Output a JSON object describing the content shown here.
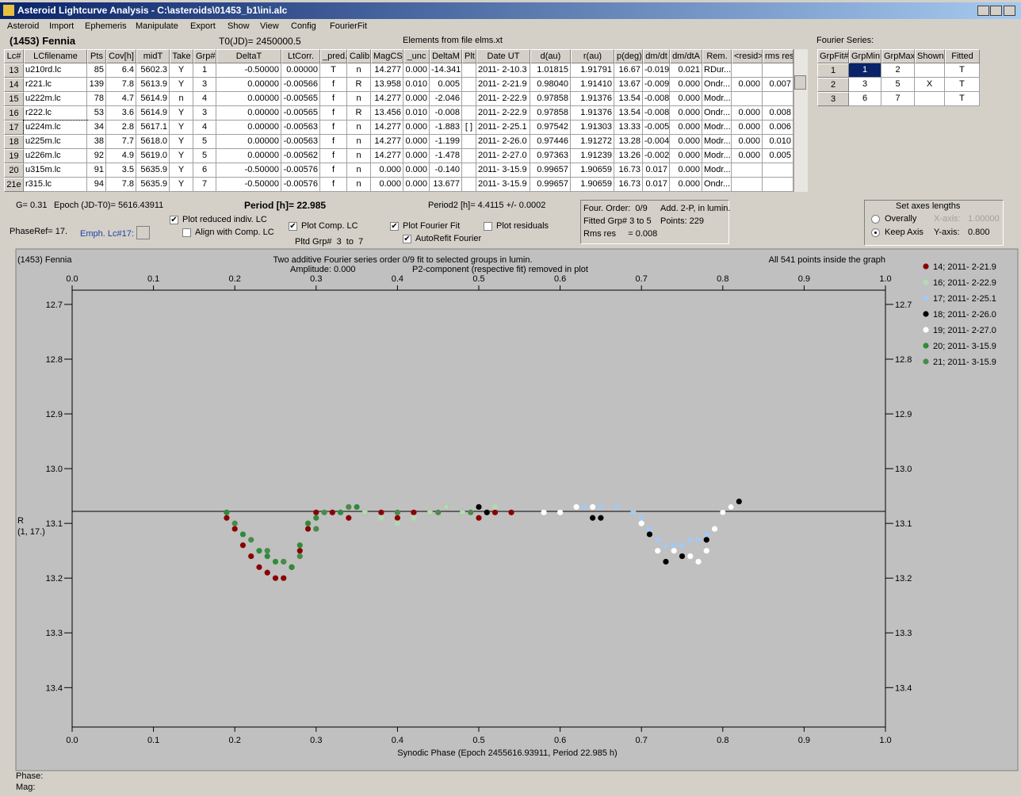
{
  "title_bar": "Asteroid Lightcurve Analysis - C:\\asteroids\\01453_b1\\ini.alc",
  "menu": [
    "Asteroid",
    "Import",
    "Ephemeris",
    "Manipulate",
    "Export",
    "Show",
    "View",
    "Config",
    "FourierFit"
  ],
  "header": {
    "object_name": "(1453) Fennia",
    "t0": "T0(JD)= 2450000.5",
    "elements": "Elements from file elms.xt"
  },
  "table": {
    "headers": [
      "Lc#",
      "LCfilename",
      "Pts",
      "Cov[h]",
      "midT",
      "Take",
      "Grp#",
      "DeltaT",
      "LtCorr.",
      "_pred.",
      "Calib.",
      "MagCS",
      "_unc",
      "DeltaM",
      "Plt",
      "Date UT",
      "d(au)",
      "r(au)",
      "p(deg)",
      "dm/dt",
      "dm/dtA",
      "Rem.",
      "<resid>",
      "rms res"
    ],
    "rows": [
      [
        "13",
        "u210rd.lc",
        "85",
        "6.4",
        "5602.3",
        "Y",
        "1",
        "-0.50000",
        "0.00000",
        "T",
        "n",
        "14.277",
        "0.000",
        "-14.341",
        null,
        "2011- 2-10.3",
        "1.01815",
        "1.91791",
        "16.67",
        "-0.019",
        "0.021",
        "RDur...",
        null,
        null
      ],
      [
        "14",
        "r221.lc",
        "139",
        "7.8",
        "5613.9",
        "Y",
        "3",
        "0.00000",
        "-0.00566",
        "f",
        "R",
        "13.958",
        "0.010",
        "0.005",
        null,
        "2011- 2-21.9",
        "0.98040",
        "1.91410",
        "13.67",
        "-0.009",
        "0.000",
        "Ondr...",
        "0.000",
        "0.007"
      ],
      [
        "15",
        "u222m.lc",
        "78",
        "4.7",
        "5614.9",
        "n",
        "4",
        "0.00000",
        "-0.00565",
        "f",
        "n",
        "14.277",
        "0.000",
        "-2.046",
        null,
        "2011- 2-22.9",
        "0.97858",
        "1.91376",
        "13.54",
        "-0.008",
        "0.000",
        "Modr...",
        null,
        null
      ],
      [
        "16",
        "r222.lc",
        "53",
        "3.6",
        "5614.9",
        "Y",
        "3",
        "0.00000",
        "-0.00565",
        "f",
        "R",
        "13.456",
        "0.010",
        "-0.008",
        null,
        "2011- 2-22.9",
        "0.97858",
        "1.91376",
        "13.54",
        "-0.008",
        "0.000",
        "Ondr...",
        "0.000",
        "0.008"
      ],
      [
        "17",
        "u224m.lc",
        "34",
        "2.8",
        "5617.1",
        "Y",
        "4",
        "0.00000",
        "-0.00563",
        "f",
        "n",
        "14.277",
        "0.000",
        "-1.883",
        "[ ]",
        "2011- 2-25.1",
        "0.97542",
        "1.91303",
        "13.33",
        "-0.005",
        "0.000",
        "Modr...",
        "0.000",
        "0.006"
      ],
      [
        "18",
        "u225m.lc",
        "38",
        "7.7",
        "5618.0",
        "Y",
        "5",
        "0.00000",
        "-0.00563",
        "f",
        "n",
        "14.277",
        "0.000",
        "-1.199",
        null,
        "2011- 2-26.0",
        "0.97446",
        "1.91272",
        "13.28",
        "-0.004",
        "0.000",
        "Modr...",
        "0.000",
        "0.010"
      ],
      [
        "19",
        "u226m.lc",
        "92",
        "4.9",
        "5619.0",
        "Y",
        "5",
        "0.00000",
        "-0.00562",
        "f",
        "n",
        "14.277",
        "0.000",
        "-1.478",
        null,
        "2011- 2-27.0",
        "0.97363",
        "1.91239",
        "13.26",
        "-0.002",
        "0.000",
        "Modr...",
        "0.000",
        "0.005"
      ],
      [
        "20",
        "u315m.lc",
        "91",
        "3.5",
        "5635.9",
        "Y",
        "6",
        "-0.50000",
        "-0.00576",
        "f",
        "n",
        "0.000",
        "0.000",
        "-0.140",
        null,
        "2011- 3-15.9",
        "0.99657",
        "1.90659",
        "16.73",
        "0.017",
        "0.000",
        "Modr...",
        null,
        null
      ],
      [
        "21e",
        "r315.lc",
        "94",
        "7.8",
        "5635.9",
        "Y",
        "7",
        "-0.50000",
        "-0.00576",
        "f",
        "n",
        "0.000",
        "0.000",
        "13.677",
        null,
        "2011- 3-15.9",
        "0.99657",
        "1.90659",
        "16.73",
        "0.017",
        "0.000",
        "Ondr...",
        null,
        null
      ]
    ]
  },
  "fourier": {
    "title": "Fourier Series:",
    "headers": [
      "GrpFit#",
      "GrpMin",
      "GrpMax",
      "Shown",
      "Fitted"
    ],
    "rows": [
      [
        "1",
        "1",
        "2",
        null,
        "T"
      ],
      [
        "2",
        "3",
        "5",
        "X",
        "T"
      ],
      [
        "3",
        "6",
        "7",
        null,
        "T"
      ]
    ]
  },
  "controls": {
    "g": "G= 0.31",
    "epoch": "Epoch (JD-T0)= 5616.43911",
    "period": "Period [h]= 22.985",
    "period2": "Period2 [h]= 4.4115 +/- 0.0002",
    "phase_ref": "PhaseRef= 17.",
    "emph": "Emph. Lc#17:",
    "plotted_groups": "Pltd Grp#  3  to  7",
    "checkboxes": [
      {
        "label": "Plot reduced indiv. LC",
        "checked": true
      },
      {
        "label": "Align with Comp. LC",
        "checked": false
      },
      {
        "label": "Plot Comp. LC",
        "checked": true
      },
      {
        "label": "Plot Fourier Fit",
        "checked": true
      },
      {
        "label": "Plot residuals",
        "checked": false
      },
      {
        "label": "AutoRefit Fourier",
        "checked": true
      }
    ]
  },
  "fit_info": [
    "Four. Order:  0/9",
    "Add. 2-P, in lumin.",
    "Fitted Grp# 3 to 5",
    "Points: 229",
    "Rms res     = 0.008"
  ],
  "axes_box": {
    "title": "Set axes lengths",
    "radios": [
      {
        "label": "Overally",
        "checked": false
      },
      {
        "label": "Keep Axis",
        "checked": true
      }
    ],
    "x_label": "X-axis:",
    "x_value": "1.00000",
    "y_label": "Y-axis:",
    "y_value": "0.800"
  },
  "chart_data": {
    "type": "scatter",
    "title": "(1453) Fennia",
    "subtitle": "Two additive Fourier series order 0/9 fit to selected groups in lumin.",
    "annotations": [
      "Amplitude: 0.000",
      "P2-component (respective fit) removed in plot",
      "All 541 points inside the graph"
    ],
    "xlabel": "Synodic Phase (Epoch 2455616.93911, Period 22.985 h)",
    "ylabel": "R",
    "ylabel_sub": "(1, 17.)",
    "xlim": [
      0,
      1
    ],
    "xticks": [
      {
        "value": 0,
        "label": "0.0"
      },
      0.1,
      0.2,
      0.3,
      0.4,
      0.5,
      0.6,
      0.7,
      0.8,
      0.9,
      {
        "value": 1,
        "label": "1.0"
      }
    ],
    "ylim": [
      12.674,
      13.472
    ],
    "y_inverted": true,
    "yticks": [
      12.7,
      12.8,
      12.9,
      {
        "value": 13,
        "label": "13.0"
      },
      13.1,
      13.2,
      13.3,
      13.4
    ],
    "fit_line": 13.078,
    "series": [
      {
        "name": "14; 2011- 2-21.9",
        "color": "#8b0000",
        "x": [
          0.19,
          0.2,
          0.21,
          0.22,
          0.23,
          0.24,
          0.25,
          0.26,
          0.27,
          0.28,
          0.29,
          0.3,
          0.32,
          0.34,
          0.36,
          0.38,
          0.4,
          0.42,
          0.44,
          0.46,
          0.48,
          0.5,
          0.52,
          0.54
        ],
        "values": [
          13.09,
          13.11,
          13.14,
          13.16,
          13.18,
          13.19,
          13.2,
          13.2,
          13.18,
          13.15,
          13.11,
          13.08,
          13.08,
          13.09,
          13.08,
          13.08,
          13.09,
          13.08,
          13.08,
          13.07,
          13.08,
          13.09,
          13.08,
          13.08
        ]
      },
      {
        "name": "16; 2011- 2-22.9",
        "color": "#b4d8b4",
        "x": [
          0.36,
          0.38,
          0.4,
          0.42,
          0.44,
          0.46,
          0.48,
          0.5,
          0.52
        ],
        "values": [
          13.08,
          13.09,
          13.1,
          13.09,
          13.08,
          13.07,
          13.08,
          13.07,
          13.07
        ]
      },
      {
        "name": "17; 2011- 2-25.1",
        "color": "#a6c8ee",
        "x": [
          0.63,
          0.65,
          0.67,
          0.69,
          0.7,
          0.71,
          0.72,
          0.73,
          0.74,
          0.75,
          0.76,
          0.77,
          0.78
        ],
        "values": [
          13.07,
          13.07,
          13.07,
          13.08,
          13.09,
          13.11,
          13.13,
          13.14,
          13.14,
          13.14,
          13.13,
          13.13,
          13.12
        ]
      },
      {
        "name": "18; 2011- 2-26.0",
        "color": "#000000",
        "x": [
          0.5,
          0.51,
          0.64,
          0.65,
          0.71,
          0.73,
          0.75,
          0.78,
          0.8,
          0.81,
          0.82
        ],
        "values": [
          13.07,
          13.08,
          13.09,
          13.09,
          13.12,
          13.17,
          13.16,
          13.13,
          13.08,
          13.07,
          13.06
        ]
      },
      {
        "name": "19; 2011- 2-27.0",
        "color": "#ffffff",
        "x": [
          0.58,
          0.6,
          0.62,
          0.64,
          0.7,
          0.72,
          0.74,
          0.76,
          0.77,
          0.78,
          0.79,
          0.8,
          0.81
        ],
        "values": [
          13.08,
          13.08,
          13.07,
          13.07,
          13.1,
          13.15,
          13.15,
          13.16,
          13.17,
          13.15,
          13.11,
          13.08,
          13.07
        ]
      },
      {
        "name": "20; 2011- 3-15.9",
        "color": "#2e8b3a",
        "x": [
          0.19,
          0.21,
          0.23,
          0.24,
          0.25,
          0.26,
          0.27,
          0.28,
          0.29,
          0.3,
          0.33,
          0.35
        ],
        "values": [
          13.08,
          13.12,
          13.15,
          13.16,
          13.17,
          13.17,
          13.18,
          13.14,
          13.1,
          13.09,
          13.08,
          13.07
        ]
      },
      {
        "name": "21; 2011- 3-15.9",
        "color": "#4a8a4a",
        "x": [
          0.2,
          0.22,
          0.24,
          0.26,
          0.28,
          0.3,
          0.31,
          0.34,
          0.4,
          0.45,
          0.49
        ],
        "values": [
          13.1,
          13.13,
          13.15,
          13.17,
          13.16,
          13.11,
          13.08,
          13.07,
          13.08,
          13.08,
          13.08
        ]
      }
    ]
  },
  "status": [
    "Phase:",
    "Mag:"
  ]
}
